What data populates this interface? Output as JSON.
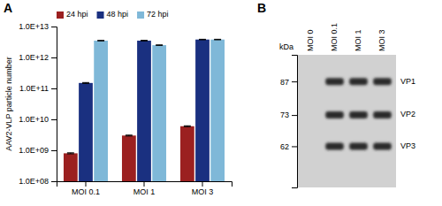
{
  "chart_data": [
    {
      "type": "bar",
      "title": "A",
      "categories": [
        "MOI 0.1",
        "MOI 1",
        "MOI 3"
      ],
      "series": [
        {
          "name": "24 hpi",
          "color": "#9B2020",
          "values": [
            800000000.0,
            3000000000.0,
            6000000000.0
          ],
          "errors": [
            30000000.0,
            100000000.0,
            200000000.0
          ]
        },
        {
          "name": "48 hpi",
          "color": "#1A3080",
          "values": [
            150000000000.0,
            3500000000000.0,
            3800000000000.0
          ],
          "errors": [
            5000000000.0,
            80000000000.0,
            80000000000.0
          ]
        },
        {
          "name": "72 hpi",
          "color": "#7FB8D8",
          "values": [
            3500000000000.0,
            2500000000000.0,
            3800000000000.0
          ],
          "errors": [
            60000000000.0,
            50000000000.0,
            80000000000.0
          ]
        }
      ],
      "ylabel": "AAV2-VLP particle number",
      "log": "y",
      "ylim": [
        100000000.0,
        10000000000000.0
      ],
      "yticks": [
        {
          "value": 100000000.0,
          "label": "1.0E+08"
        },
        {
          "value": 1000000000.0,
          "label": "1.0E+09"
        },
        {
          "value": 10000000000.0,
          "label": "1.0E+10"
        },
        {
          "value": 100000000000.0,
          "label": "1.0E+11"
        },
        {
          "value": 1000000000000.0,
          "label": "1.0E+12"
        },
        {
          "value": 10000000000000.0,
          "label": "1.0E+13"
        }
      ],
      "grid": false,
      "legend": "upper left"
    },
    {
      "type": "blot",
      "title": "B",
      "categories": [
        "MOI 0",
        "MOI 0.1",
        "MOI 1",
        "MOI 3"
      ],
      "series": [
        {
          "name": "VP1",
          "values": [
            null,
            87,
            87,
            87
          ]
        },
        {
          "name": "VP2",
          "values": [
            null,
            73,
            73,
            73
          ]
        },
        {
          "name": "VP3",
          "values": [
            null,
            62,
            62,
            62
          ]
        }
      ],
      "ylabel": "kDa",
      "log": "y",
      "ylim": [
        100,
        50
      ],
      "yticks": [
        87,
        73,
        62
      ]
    }
  ]
}
